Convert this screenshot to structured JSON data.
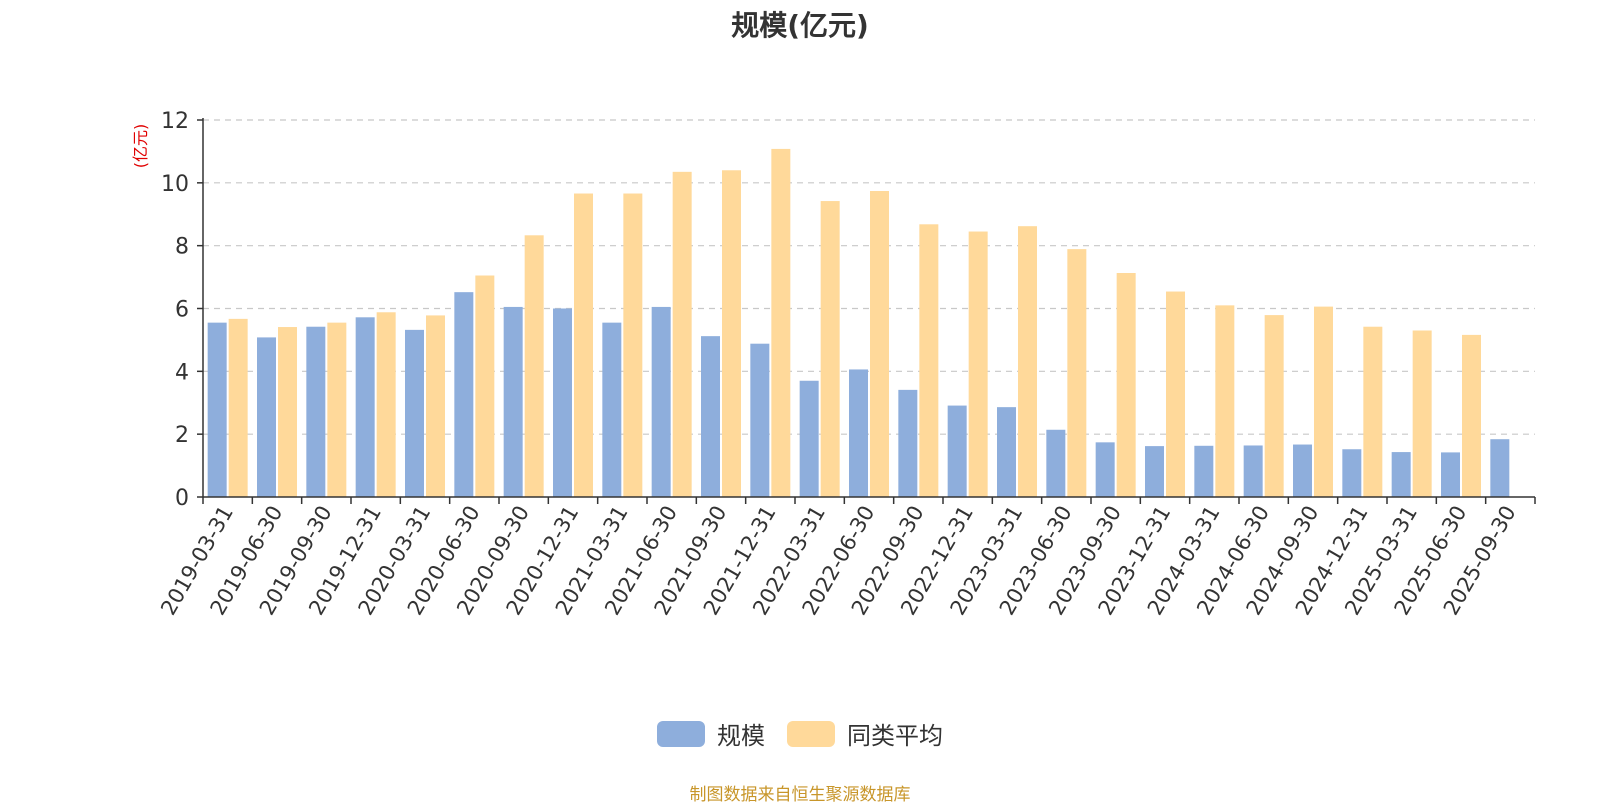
{
  "chart_data": {
    "type": "bar",
    "title": "规模(亿元)",
    "ylabel": "(亿元)",
    "ylim": [
      0,
      12
    ],
    "yticks": [
      0,
      2,
      4,
      6,
      8,
      10,
      12
    ],
    "grid": true,
    "legend_position": "bottom",
    "categories": [
      "2019-03-31",
      "2019-06-30",
      "2019-09-30",
      "2019-12-31",
      "2020-03-31",
      "2020-06-30",
      "2020-09-30",
      "2020-12-31",
      "2021-03-31",
      "2021-06-30",
      "2021-09-30",
      "2021-12-31",
      "2022-03-31",
      "2022-06-30",
      "2022-09-30",
      "2022-12-31",
      "2023-03-31",
      "2023-06-30",
      "2023-09-30",
      "2023-12-31",
      "2024-03-31",
      "2024-06-30",
      "2024-09-30",
      "2024-12-31",
      "2025-03-31",
      "2025-06-30",
      "2025-09-30"
    ],
    "series": [
      {
        "name": "规模",
        "color": "#8eaedc",
        "values": [
          5.55,
          5.08,
          5.42,
          5.72,
          5.32,
          6.52,
          6.05,
          6.0,
          5.55,
          6.05,
          5.12,
          4.88,
          3.7,
          4.06,
          3.41,
          2.91,
          2.86,
          2.14,
          1.74,
          1.62,
          1.63,
          1.64,
          1.67,
          1.52,
          1.43,
          1.42,
          1.84
        ]
      },
      {
        "name": "同类平均",
        "color": "#ffd99a",
        "values": [
          5.67,
          5.41,
          5.55,
          5.88,
          5.78,
          7.05,
          8.33,
          9.66,
          9.66,
          10.35,
          10.4,
          11.08,
          9.42,
          9.74,
          8.68,
          8.45,
          8.62,
          7.89,
          7.13,
          6.54,
          6.1,
          5.79,
          6.06,
          5.42,
          5.3,
          5.16,
          null
        ]
      }
    ]
  },
  "footer": {
    "source_note": "制图数据来自恒生聚源数据库"
  }
}
